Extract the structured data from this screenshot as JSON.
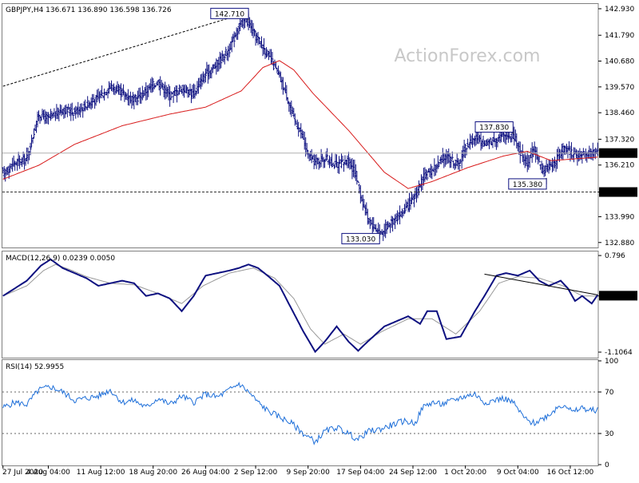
{
  "watermark": "ActionForex.com",
  "chart_data": [
    {
      "type": "ohlc",
      "panel": "price",
      "header": {
        "symbol": "GBPJPY,H4",
        "open": "136.671",
        "high": "136.890",
        "low": "136.598",
        "close": "136.726"
      },
      "ylim": [
        132.7,
        143.1
      ],
      "y_ticks": [
        "142.930",
        "141.790",
        "140.680",
        "139.570",
        "138.460",
        "137.320",
        "136.210",
        "135.050",
        "133.990",
        "132.880"
      ],
      "y_tick_values": [
        142.93,
        141.79,
        140.68,
        139.57,
        138.46,
        137.32,
        136.21,
        135.05,
        133.99,
        132.88
      ],
      "x_ticks": [
        "27 Jul 2020",
        "4 Aug 04:00",
        "11 Aug 12:00",
        "18 Aug 20:00",
        "26 Aug 04:00",
        "2 Sep 12:00",
        "9 Sep 20:00",
        "17 Sep 04:00",
        "24 Sep 12:00",
        "1 Oct 20:00",
        "9 Oct 04:00",
        "16 Oct 12:00"
      ],
      "x_tick_index": [
        0,
        38,
        82,
        126,
        170,
        212,
        256,
        300,
        344,
        388,
        432,
        476
      ],
      "bar_count": 500,
      "close_anchors": [
        [
          0,
          135.85
        ],
        [
          10,
          136.3
        ],
        [
          20,
          136.5
        ],
        [
          30,
          138.4
        ],
        [
          38,
          138.2
        ],
        [
          50,
          138.6
        ],
        [
          60,
          138.5
        ],
        [
          70,
          138.8
        ],
        [
          80,
          139.1
        ],
        [
          90,
          139.6
        ],
        [
          100,
          139.3
        ],
        [
          110,
          139.0
        ],
        [
          120,
          139.4
        ],
        [
          130,
          139.8
        ],
        [
          140,
          139.2
        ],
        [
          150,
          139.5
        ],
        [
          160,
          139.3
        ],
        [
          170,
          140.1
        ],
        [
          180,
          140.6
        ],
        [
          190,
          141.2
        ],
        [
          198,
          142.2
        ],
        [
          204,
          142.5
        ],
        [
          210,
          141.9
        ],
        [
          218,
          141.3
        ],
        [
          225,
          140.7
        ],
        [
          232,
          140.0
        ],
        [
          238,
          139.2
        ],
        [
          244,
          138.2
        ],
        [
          250,
          137.6
        ],
        [
          256,
          136.6
        ],
        [
          262,
          136.35
        ],
        [
          270,
          136.5
        ],
        [
          280,
          136.2
        ],
        [
          290,
          136.4
        ],
        [
          296,
          135.8
        ],
        [
          300,
          134.9
        ],
        [
          306,
          133.9
        ],
        [
          312,
          133.5
        ],
        [
          318,
          133.3
        ],
        [
          326,
          133.8
        ],
        [
          334,
          134.1
        ],
        [
          344,
          134.7
        ],
        [
          352,
          135.6
        ],
        [
          362,
          136.1
        ],
        [
          372,
          136.6
        ],
        [
          382,
          136.2
        ],
        [
          388,
          137.0
        ],
        [
          396,
          137.4
        ],
        [
          404,
          137.1
        ],
        [
          412,
          137.3
        ],
        [
          420,
          137.5
        ],
        [
          428,
          137.5
        ],
        [
          434,
          136.8
        ],
        [
          440,
          136.3
        ],
        [
          446,
          136.9
        ],
        [
          452,
          136.0
        ],
        [
          458,
          136.1
        ],
        [
          464,
          136.4
        ],
        [
          470,
          136.9
        ],
        [
          478,
          136.7
        ],
        [
          486,
          136.6
        ],
        [
          492,
          136.8
        ],
        [
          499,
          136.72
        ]
      ],
      "ma_anchors": [
        [
          0,
          135.6
        ],
        [
          30,
          136.2
        ],
        [
          60,
          137.1
        ],
        [
          100,
          137.9
        ],
        [
          140,
          138.4
        ],
        [
          170,
          138.7
        ],
        [
          200,
          139.4
        ],
        [
          218,
          140.4
        ],
        [
          232,
          140.7
        ],
        [
          244,
          140.3
        ],
        [
          260,
          139.3
        ],
        [
          290,
          137.7
        ],
        [
          320,
          135.9
        ],
        [
          340,
          135.2
        ],
        [
          360,
          135.5
        ],
        [
          390,
          136.1
        ],
        [
          420,
          136.6
        ],
        [
          440,
          136.8
        ],
        [
          460,
          136.4
        ],
        [
          499,
          136.55
        ]
      ],
      "current_price": 136.726,
      "current_price_label": "136.726",
      "support_level": 135.05,
      "support_label": "135.050",
      "annotations": [
        {
          "label": "142.710",
          "index": 206,
          "price": 142.71
        },
        {
          "label": "137.830",
          "index": 428,
          "price": 137.83
        },
        {
          "label": "135.380",
          "index": 456,
          "price": 135.38
        },
        {
          "label": "133.030",
          "index": 316,
          "price": 133.03
        }
      ],
      "trendline": {
        "from": [
          0,
          139.6
        ],
        "to": [
          204,
          142.75
        ]
      },
      "colors": {
        "bars": "#0d1080",
        "ma": "#d81b1b",
        "current_line": "#b0b0b0",
        "support_line": "#333333"
      }
    },
    {
      "type": "line",
      "panel": "macd",
      "header": {
        "name": "MACD(12,26,9)",
        "macd": "0.0239",
        "signal": "0.0050"
      },
      "ylim": [
        -1.2,
        0.86
      ],
      "y_ticks": [
        "0.796",
        "0.00",
        "-1.1064"
      ],
      "y_tick_values": [
        0.796,
        0.0,
        -1.1064
      ],
      "current_label": "0.0050",
      "current_value": 0.005,
      "macd_anchors": [
        [
          0,
          0.0
        ],
        [
          20,
          0.3
        ],
        [
          32,
          0.6
        ],
        [
          40,
          0.72
        ],
        [
          50,
          0.55
        ],
        [
          60,
          0.45
        ],
        [
          70,
          0.35
        ],
        [
          80,
          0.2
        ],
        [
          90,
          0.25
        ],
        [
          100,
          0.3
        ],
        [
          110,
          0.25
        ],
        [
          120,
          0.0
        ],
        [
          130,
          0.05
        ],
        [
          140,
          -0.05
        ],
        [
          150,
          -0.3
        ],
        [
          160,
          0.0
        ],
        [
          170,
          0.4
        ],
        [
          180,
          0.45
        ],
        [
          190,
          0.5
        ],
        [
          198,
          0.55
        ],
        [
          206,
          0.62
        ],
        [
          214,
          0.55
        ],
        [
          222,
          0.4
        ],
        [
          232,
          0.2
        ],
        [
          242,
          -0.25
        ],
        [
          252,
          -0.7
        ],
        [
          262,
          -1.1
        ],
        [
          270,
          -0.9
        ],
        [
          280,
          -0.6
        ],
        [
          290,
          -0.9
        ],
        [
          298,
          -1.08
        ],
        [
          306,
          -0.9
        ],
        [
          320,
          -0.6
        ],
        [
          330,
          -0.5
        ],
        [
          340,
          -0.4
        ],
        [
          350,
          -0.55
        ],
        [
          356,
          -0.3
        ],
        [
          364,
          -0.3
        ],
        [
          372,
          -0.85
        ],
        [
          384,
          -0.8
        ],
        [
          396,
          -0.3
        ],
        [
          404,
          0.0
        ],
        [
          414,
          0.4
        ],
        [
          422,
          0.45
        ],
        [
          432,
          0.4
        ],
        [
          442,
          0.5
        ],
        [
          450,
          0.3
        ],
        [
          458,
          0.2
        ],
        [
          468,
          0.3
        ],
        [
          474,
          0.15
        ],
        [
          480,
          -0.1
        ],
        [
          486,
          0.0
        ],
        [
          494,
          -0.15
        ],
        [
          499,
          0.02
        ]
      ],
      "signal_anchors": [
        [
          0,
          0.0
        ],
        [
          20,
          0.2
        ],
        [
          34,
          0.5
        ],
        [
          44,
          0.62
        ],
        [
          56,
          0.52
        ],
        [
          70,
          0.38
        ],
        [
          90,
          0.25
        ],
        [
          110,
          0.22
        ],
        [
          130,
          0.05
        ],
        [
          150,
          -0.15
        ],
        [
          168,
          0.2
        ],
        [
          190,
          0.45
        ],
        [
          210,
          0.55
        ],
        [
          228,
          0.35
        ],
        [
          244,
          -0.05
        ],
        [
          258,
          -0.65
        ],
        [
          270,
          -0.95
        ],
        [
          286,
          -0.75
        ],
        [
          300,
          -0.95
        ],
        [
          318,
          -0.7
        ],
        [
          340,
          -0.45
        ],
        [
          360,
          -0.45
        ],
        [
          380,
          -0.75
        ],
        [
          400,
          -0.3
        ],
        [
          416,
          0.25
        ],
        [
          432,
          0.38
        ],
        [
          450,
          0.35
        ],
        [
          470,
          0.2
        ],
        [
          486,
          0.0
        ],
        [
          499,
          0.0
        ]
      ],
      "trendline": {
        "from": [
          404,
          0.43
        ],
        "to": [
          499,
          0.02
        ]
      },
      "colors": {
        "macd": "#0d1080",
        "signal": "#999999",
        "trendline": "#000000"
      }
    },
    {
      "type": "line",
      "panel": "rsi",
      "header": {
        "name": "RSI(14)",
        "value": "52.9955"
      },
      "ylim": [
        0,
        100
      ],
      "y_ticks": [
        "100",
        "70",
        "30",
        "0"
      ],
      "y_tick_values": [
        100,
        70,
        30,
        0
      ],
      "levels": [
        70,
        30
      ],
      "rsi_anchors": [
        [
          0,
          55
        ],
        [
          10,
          60
        ],
        [
          20,
          58
        ],
        [
          30,
          72
        ],
        [
          40,
          75
        ],
        [
          50,
          70
        ],
        [
          60,
          62
        ],
        [
          70,
          64
        ],
        [
          80,
          66
        ],
        [
          90,
          72
        ],
        [
          100,
          60
        ],
        [
          110,
          62
        ],
        [
          120,
          55
        ],
        [
          130,
          64
        ],
        [
          140,
          58
        ],
        [
          150,
          66
        ],
        [
          160,
          60
        ],
        [
          170,
          68
        ],
        [
          180,
          65
        ],
        [
          190,
          72
        ],
        [
          198,
          78
        ],
        [
          206,
          70
        ],
        [
          214,
          60
        ],
        [
          222,
          52
        ],
        [
          232,
          46
        ],
        [
          242,
          40
        ],
        [
          252,
          30
        ],
        [
          262,
          22
        ],
        [
          270,
          32
        ],
        [
          280,
          36
        ],
        [
          290,
          30
        ],
        [
          298,
          24
        ],
        [
          306,
          32
        ],
        [
          316,
          34
        ],
        [
          326,
          38
        ],
        [
          336,
          42
        ],
        [
          346,
          40
        ],
        [
          352,
          55
        ],
        [
          360,
          60
        ],
        [
          368,
          58
        ],
        [
          378,
          62
        ],
        [
          388,
          66
        ],
        [
          396,
          68
        ],
        [
          404,
          60
        ],
        [
          412,
          62
        ],
        [
          420,
          64
        ],
        [
          428,
          60
        ],
        [
          434,
          50
        ],
        [
          440,
          42
        ],
        [
          446,
          40
        ],
        [
          452,
          44
        ],
        [
          458,
          48
        ],
        [
          466,
          56
        ],
        [
          472,
          58
        ],
        [
          478,
          50
        ],
        [
          486,
          55
        ],
        [
          492,
          52
        ],
        [
          499,
          53
        ]
      ],
      "colors": {
        "rsi": "#1e6fd9",
        "levels": "#666666"
      }
    }
  ]
}
